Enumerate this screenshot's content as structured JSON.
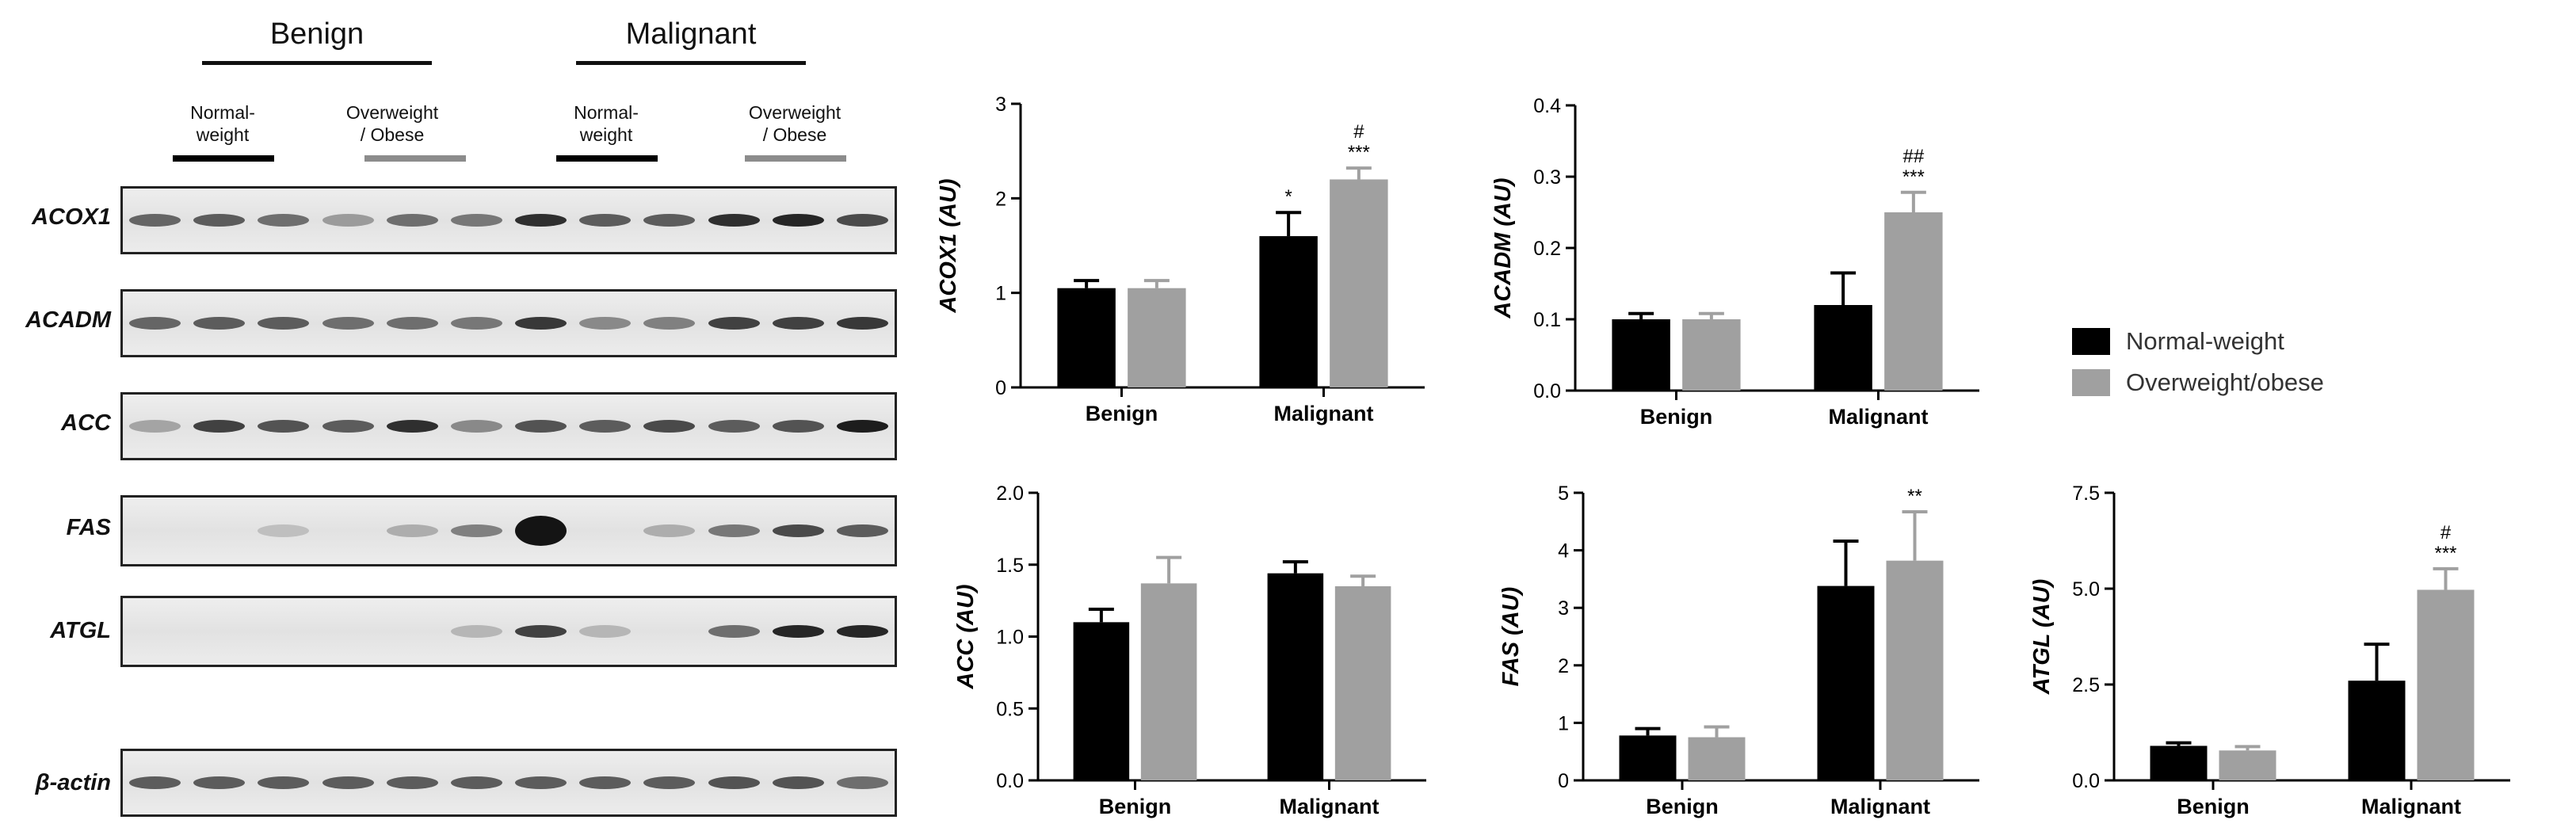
{
  "blot": {
    "group_headers": [
      "Benign",
      "Malignant"
    ],
    "sub_groups": [
      "Normal-\nweight",
      "Overweight\n/ Obese",
      "Normal-\nweight",
      "Overweight\n/ Obese"
    ],
    "proteins": [
      "ACOX1",
      "ACADM",
      "ACC",
      "FAS",
      "ATGL",
      "β-actin"
    ]
  },
  "legend": {
    "entries": [
      {
        "label": "Normal-weight",
        "color": "#000000"
      },
      {
        "label": "Overweight/obese",
        "color": "#a0a0a0"
      }
    ]
  },
  "chart_data": [
    {
      "type": "bar",
      "ylabel": "ACOX1 (AU)",
      "categories": [
        "Benign",
        "Malignant"
      ],
      "series": [
        {
          "name": "Normal-weight",
          "color": "#000000",
          "values": [
            1.05,
            1.6
          ],
          "errors": [
            0.08,
            0.25
          ]
        },
        {
          "name": "Overweight/obese",
          "color": "#a0a0a0",
          "values": [
            1.05,
            2.2
          ],
          "errors": [
            0.08,
            0.12
          ]
        }
      ],
      "annotations": [
        {
          "series": 0,
          "category": 1,
          "lines": [
            "*"
          ]
        },
        {
          "series": 1,
          "category": 1,
          "lines": [
            "#",
            "***"
          ]
        }
      ],
      "ylim": [
        0,
        3
      ],
      "yticks": [
        0,
        1,
        2,
        3
      ],
      "ytick_labels": [
        "0",
        "1",
        "2",
        "3"
      ]
    },
    {
      "type": "bar",
      "ylabel": "ACADM (AU)",
      "categories": [
        "Benign",
        "Malignant"
      ],
      "series": [
        {
          "name": "Normal-weight",
          "color": "#000000",
          "values": [
            0.1,
            0.12
          ],
          "errors": [
            0.008,
            0.045
          ]
        },
        {
          "name": "Overweight/obese",
          "color": "#a0a0a0",
          "values": [
            0.1,
            0.25
          ],
          "errors": [
            0.008,
            0.028
          ]
        }
      ],
      "annotations": [
        {
          "series": 1,
          "category": 1,
          "lines": [
            "##",
            "***"
          ]
        }
      ],
      "ylim": [
        0,
        0.4
      ],
      "yticks": [
        0,
        0.1,
        0.2,
        0.3,
        0.4
      ],
      "ytick_labels": [
        "0.0",
        "0.1",
        "0.2",
        "0.3",
        "0.4"
      ]
    },
    {
      "type": "bar",
      "ylabel": "ACC (AU)",
      "categories": [
        "Benign",
        "Malignant"
      ],
      "series": [
        {
          "name": "Normal-weight",
          "color": "#000000",
          "values": [
            1.1,
            1.44
          ],
          "errors": [
            0.09,
            0.08
          ]
        },
        {
          "name": "Overweight/obese",
          "color": "#a0a0a0",
          "values": [
            1.37,
            1.35
          ],
          "errors": [
            0.18,
            0.07
          ]
        }
      ],
      "annotations": [],
      "ylim": [
        0,
        2.0
      ],
      "yticks": [
        0,
        0.5,
        1.0,
        1.5,
        2.0
      ],
      "ytick_labels": [
        "0.0",
        "0.5",
        "1.0",
        "1.5",
        "2.0"
      ]
    },
    {
      "type": "bar",
      "ylabel": "FAS (AU)",
      "categories": [
        "Benign",
        "Malignant"
      ],
      "series": [
        {
          "name": "Normal-weight",
          "color": "#000000",
          "values": [
            0.78,
            3.38
          ],
          "errors": [
            0.12,
            0.78
          ]
        },
        {
          "name": "Overweight/obese",
          "color": "#a0a0a0",
          "values": [
            0.75,
            3.82
          ],
          "errors": [
            0.18,
            0.85
          ]
        }
      ],
      "annotations": [
        {
          "series": 1,
          "category": 1,
          "lines": [
            "**"
          ]
        }
      ],
      "ylim": [
        0,
        5
      ],
      "yticks": [
        0,
        1,
        2,
        3,
        4,
        5
      ],
      "ytick_labels": [
        "0",
        "1",
        "2",
        "3",
        "4",
        "5"
      ]
    },
    {
      "type": "bar",
      "ylabel": "ATGL (AU)",
      "categories": [
        "Benign",
        "Malignant"
      ],
      "series": [
        {
          "name": "Normal-weight",
          "color": "#000000",
          "values": [
            0.9,
            2.6
          ],
          "errors": [
            0.08,
            0.95
          ]
        },
        {
          "name": "Overweight/obese",
          "color": "#a0a0a0",
          "values": [
            0.78,
            4.97
          ],
          "errors": [
            0.1,
            0.55
          ]
        }
      ],
      "annotations": [
        {
          "series": 1,
          "category": 1,
          "lines": [
            "#",
            "***"
          ]
        }
      ],
      "ylim": [
        0,
        7.5
      ],
      "yticks": [
        0,
        2.5,
        5.0,
        7.5
      ],
      "ytick_labels": [
        "0.0",
        "2.5",
        "5.0",
        "7.5"
      ]
    }
  ]
}
